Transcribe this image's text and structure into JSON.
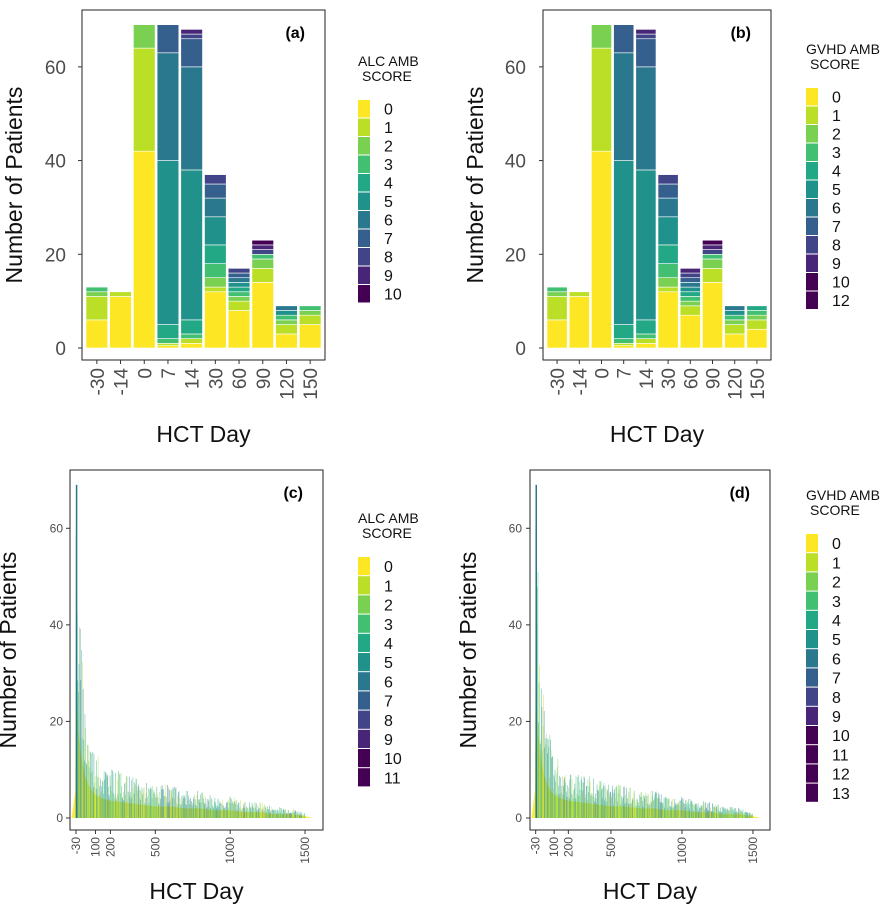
{
  "palette": {
    "0": "#FDE725",
    "1": "#BBDF27",
    "2": "#7AD151",
    "3": "#43BF71",
    "4": "#22A884",
    "5": "#21918C",
    "6": "#2A788E",
    "7": "#355F8D",
    "8": "#414487",
    "9": "#482576",
    "10": "#440154",
    "11": "#440154",
    "12": "#440154",
    "13": "#440154"
  },
  "chart_data": [
    {
      "panel": "(a)",
      "type": "bar",
      "stacked": true,
      "xlabel": "HCT Day",
      "ylabel": "Number of Patients",
      "categories": [
        "-30",
        "-14",
        "0",
        "7",
        "14",
        "30",
        "60",
        "90",
        "120",
        "150"
      ],
      "ylim": [
        0,
        70
      ],
      "yticks": [
        0,
        20,
        40,
        60
      ],
      "legend": {
        "title": [
          "ALC AMB",
          "SCORE"
        ],
        "position": "right",
        "entries": [
          "0",
          "1",
          "2",
          "3",
          "4",
          "5",
          "6",
          "7",
          "8",
          "9",
          "10"
        ]
      },
      "stacks": [
        [
          [
            0,
            6
          ],
          [
            1,
            5
          ],
          [
            2,
            1
          ],
          [
            3,
            1
          ]
        ],
        [
          [
            0,
            11
          ],
          [
            1,
            1
          ]
        ],
        [
          [
            0,
            42
          ],
          [
            1,
            22
          ],
          [
            2,
            5
          ]
        ],
        [
          [
            0,
            0.5
          ],
          [
            1,
            0.5
          ],
          [
            3,
            1
          ],
          [
            4,
            3
          ],
          [
            5,
            35
          ],
          [
            6,
            23
          ],
          [
            7,
            6
          ]
        ],
        [
          [
            0,
            1
          ],
          [
            1,
            1
          ],
          [
            3,
            1
          ],
          [
            4,
            3
          ],
          [
            5,
            32
          ],
          [
            6,
            22
          ],
          [
            7,
            6
          ],
          [
            8,
            1
          ],
          [
            9,
            1
          ]
        ],
        [
          [
            0,
            12
          ],
          [
            1,
            1
          ],
          [
            2,
            2
          ],
          [
            3,
            3
          ],
          [
            4,
            4
          ],
          [
            5,
            6
          ],
          [
            6,
            4
          ],
          [
            7,
            3
          ],
          [
            8,
            2
          ]
        ],
        [
          [
            0,
            8
          ],
          [
            1,
            2
          ],
          [
            2,
            1
          ],
          [
            3,
            1
          ],
          [
            4,
            1
          ],
          [
            5,
            1
          ],
          [
            6,
            1
          ],
          [
            7,
            1
          ],
          [
            8,
            1
          ]
        ],
        [
          [
            0,
            14
          ],
          [
            1,
            3
          ],
          [
            2,
            2
          ],
          [
            3,
            1
          ],
          [
            8,
            1
          ],
          [
            9,
            1
          ],
          [
            10,
            1
          ]
        ],
        [
          [
            0,
            3
          ],
          [
            1,
            2
          ],
          [
            2,
            1
          ],
          [
            3,
            1
          ],
          [
            5,
            1
          ],
          [
            6,
            1
          ]
        ],
        [
          [
            0,
            5
          ],
          [
            1,
            2
          ],
          [
            2,
            1
          ],
          [
            3,
            1
          ]
        ]
      ]
    },
    {
      "panel": "(b)",
      "type": "bar",
      "stacked": true,
      "xlabel": "HCT Day",
      "ylabel": "Number of Patients",
      "categories": [
        "-30",
        "-14",
        "0",
        "7",
        "14",
        "30",
        "60",
        "90",
        "120",
        "150"
      ],
      "ylim": [
        0,
        70
      ],
      "yticks": [
        0,
        20,
        40,
        60
      ],
      "legend": {
        "title": [
          "GVHD AMB",
          "SCORE"
        ],
        "position": "right",
        "entries": [
          "0",
          "1",
          "2",
          "3",
          "4",
          "5",
          "6",
          "7",
          "8",
          "9",
          "10",
          "12"
        ]
      },
      "stacks": [
        [
          [
            0,
            6
          ],
          [
            1,
            5
          ],
          [
            2,
            1
          ],
          [
            3,
            1
          ]
        ],
        [
          [
            0,
            11
          ],
          [
            1,
            1
          ]
        ],
        [
          [
            0,
            42
          ],
          [
            1,
            22
          ],
          [
            2,
            5
          ]
        ],
        [
          [
            0,
            0.5
          ],
          [
            1,
            0.5
          ],
          [
            3,
            1
          ],
          [
            4,
            3
          ],
          [
            5,
            35
          ],
          [
            6,
            23
          ],
          [
            7,
            6
          ]
        ],
        [
          [
            0,
            1
          ],
          [
            1,
            1
          ],
          [
            3,
            1
          ],
          [
            4,
            3
          ],
          [
            5,
            32
          ],
          [
            6,
            22
          ],
          [
            7,
            6
          ],
          [
            8,
            1
          ],
          [
            9,
            1
          ]
        ],
        [
          [
            0,
            12
          ],
          [
            1,
            1
          ],
          [
            2,
            2
          ],
          [
            3,
            3
          ],
          [
            4,
            4
          ],
          [
            5,
            6
          ],
          [
            6,
            4
          ],
          [
            7,
            3
          ],
          [
            8,
            2
          ]
        ],
        [
          [
            0,
            7
          ],
          [
            1,
            2
          ],
          [
            2,
            1
          ],
          [
            3,
            1
          ],
          [
            4,
            1
          ],
          [
            5,
            1
          ],
          [
            6,
            1
          ],
          [
            7,
            1
          ],
          [
            8,
            1
          ],
          [
            9,
            1
          ]
        ],
        [
          [
            0,
            14
          ],
          [
            1,
            3
          ],
          [
            2,
            2
          ],
          [
            3,
            1
          ],
          [
            8,
            1
          ],
          [
            9,
            1
          ],
          [
            10,
            1
          ]
        ],
        [
          [
            0,
            3
          ],
          [
            1,
            2
          ],
          [
            2,
            1
          ],
          [
            3,
            1
          ],
          [
            5,
            1
          ],
          [
            6,
            1
          ]
        ],
        [
          [
            0,
            4
          ],
          [
            1,
            2
          ],
          [
            2,
            1
          ],
          [
            3,
            1
          ],
          [
            4,
            1
          ]
        ]
      ]
    },
    {
      "panel": "(c)",
      "type": "area",
      "xlabel": "HCT Day",
      "ylabel": "Number of Patients",
      "xticks": [
        -30,
        100,
        200,
        500,
        1000,
        1500
      ],
      "ylim": [
        0,
        70
      ],
      "yticks": [
        0,
        20,
        40,
        60
      ],
      "legend": {
        "title": [
          "ALC AMB",
          "SCORE"
        ],
        "position": "right",
        "entries": [
          "0",
          "1",
          "2",
          "3",
          "4",
          "5",
          "6",
          "7",
          "8",
          "9",
          "10",
          "11"
        ]
      },
      "envelope": [
        [
          -60,
          0
        ],
        [
          -35,
          14
        ],
        [
          -30,
          69
        ],
        [
          -25,
          69
        ],
        [
          -15,
          45
        ],
        [
          0,
          35
        ],
        [
          10,
          30
        ],
        [
          30,
          22
        ],
        [
          60,
          16
        ],
        [
          100,
          12
        ],
        [
          150,
          10
        ],
        [
          200,
          9
        ],
        [
          300,
          8
        ],
        [
          400,
          7
        ],
        [
          500,
          6
        ],
        [
          600,
          6
        ],
        [
          700,
          5
        ],
        [
          800,
          5
        ],
        [
          900,
          4
        ],
        [
          1000,
          4
        ],
        [
          1100,
          3
        ],
        [
          1200,
          3
        ],
        [
          1300,
          2
        ],
        [
          1400,
          2
        ],
        [
          1500,
          1
        ],
        [
          1550,
          0
        ]
      ],
      "score0_share": 0.4
    },
    {
      "panel": "(d)",
      "type": "area",
      "xlabel": "HCT Day",
      "ylabel": "Number of Patients",
      "xticks": [
        -30,
        100,
        200,
        500,
        1000,
        1500
      ],
      "ylim": [
        0,
        70
      ],
      "yticks": [
        0,
        20,
        40,
        60
      ],
      "legend": {
        "title": [
          "GVHD AMB",
          "SCORE"
        ],
        "position": "right",
        "entries": [
          "0",
          "1",
          "2",
          "3",
          "4",
          "5",
          "6",
          "7",
          "8",
          "9",
          "10",
          "11",
          "12",
          "13"
        ]
      },
      "envelope": [
        [
          -60,
          0
        ],
        [
          -35,
          14
        ],
        [
          -30,
          69
        ],
        [
          -25,
          69
        ],
        [
          -15,
          45
        ],
        [
          0,
          35
        ],
        [
          10,
          30
        ],
        [
          30,
          22
        ],
        [
          60,
          16
        ],
        [
          100,
          12
        ],
        [
          150,
          10
        ],
        [
          200,
          9
        ],
        [
          300,
          8
        ],
        [
          400,
          7
        ],
        [
          500,
          6
        ],
        [
          600,
          6
        ],
        [
          700,
          5
        ],
        [
          800,
          5
        ],
        [
          900,
          4
        ],
        [
          1000,
          4
        ],
        [
          1100,
          3
        ],
        [
          1200,
          3
        ],
        [
          1300,
          2
        ],
        [
          1400,
          2
        ],
        [
          1500,
          1
        ],
        [
          1550,
          0
        ]
      ],
      "score0_share": 0.4
    }
  ]
}
